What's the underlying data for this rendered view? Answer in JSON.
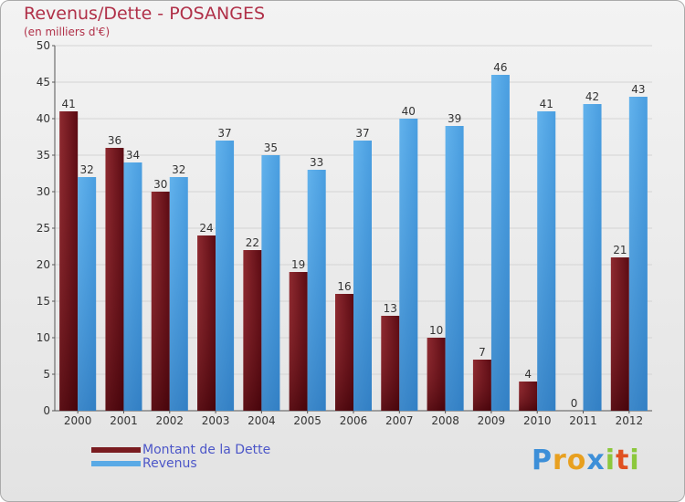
{
  "title": "Revenus/Dette - POSANGES",
  "subtitle": "(en milliers d'€)",
  "colors": {
    "debt": "#7a1c20",
    "debt_dark": "#4a0008",
    "revenue": "#5aaae6",
    "revenue_dark": "#2a78c0",
    "title": "#b03048",
    "legend_text": "#4c56c8"
  },
  "legend": {
    "debt": "Montant de la Dette",
    "revenue": "Revenus"
  },
  "logo": {
    "letters": [
      "P",
      "r",
      "o",
      "x",
      "i",
      "t",
      "i"
    ],
    "colors": [
      "#3d8fd8",
      "#e8a020",
      "#e8a020",
      "#3d8fd8",
      "#8cc83c",
      "#e05020",
      "#8cc83c"
    ]
  },
  "chart_data": {
    "type": "bar",
    "categories": [
      "2000",
      "2001",
      "2002",
      "2003",
      "2004",
      "2005",
      "2006",
      "2007",
      "2008",
      "2009",
      "2010",
      "2011",
      "2012"
    ],
    "series": [
      {
        "name": "Montant de la Dette",
        "values": [
          41,
          36,
          30,
          24,
          22,
          19,
          16,
          13,
          10,
          7,
          4,
          0,
          21
        ]
      },
      {
        "name": "Revenus",
        "values": [
          32,
          34,
          32,
          37,
          35,
          33,
          37,
          40,
          39,
          46,
          41,
          42,
          43
        ]
      }
    ],
    "ylim": [
      0,
      50
    ],
    "yticks": [
      0,
      5,
      10,
      15,
      20,
      25,
      30,
      35,
      40,
      45,
      50
    ],
    "grid": true,
    "legend_position": "bottom-left"
  }
}
